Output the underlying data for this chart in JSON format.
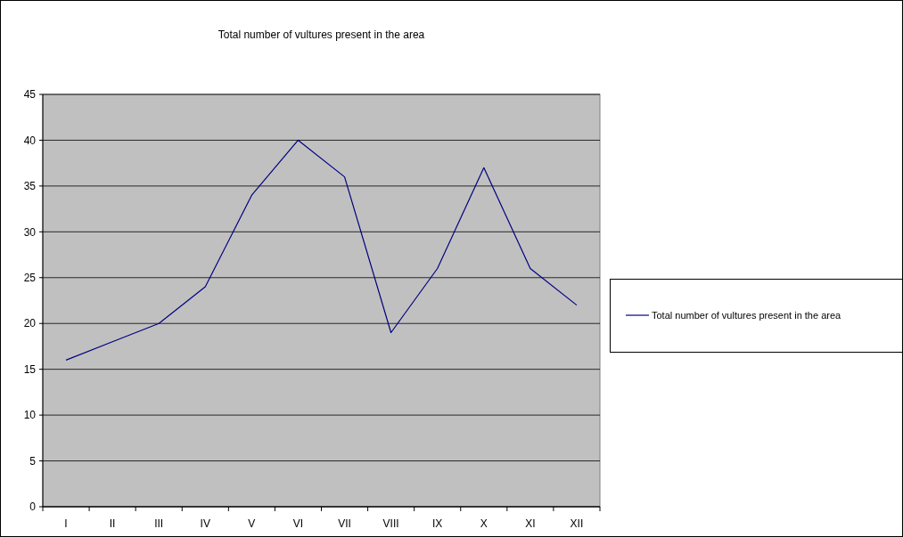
{
  "chart_data": {
    "type": "line",
    "title": "Total number of vultures present in the area",
    "categories": [
      "I",
      "II",
      "III",
      "IV",
      "V",
      "VI",
      "VII",
      "VIII",
      "IX",
      "X",
      "XI",
      "XII"
    ],
    "series": [
      {
        "name": "Total number of vultures present in the area",
        "color": "#000080",
        "values": [
          16,
          18,
          20,
          24,
          34,
          40,
          36,
          19,
          26,
          37,
          26,
          22
        ]
      }
    ],
    "ylim": [
      0,
      45
    ],
    "yticks": [
      0,
      5,
      10,
      15,
      20,
      25,
      30,
      35,
      40,
      45
    ],
    "grid": "y",
    "legend": "right",
    "marker": "none",
    "line_style": "solid"
  }
}
